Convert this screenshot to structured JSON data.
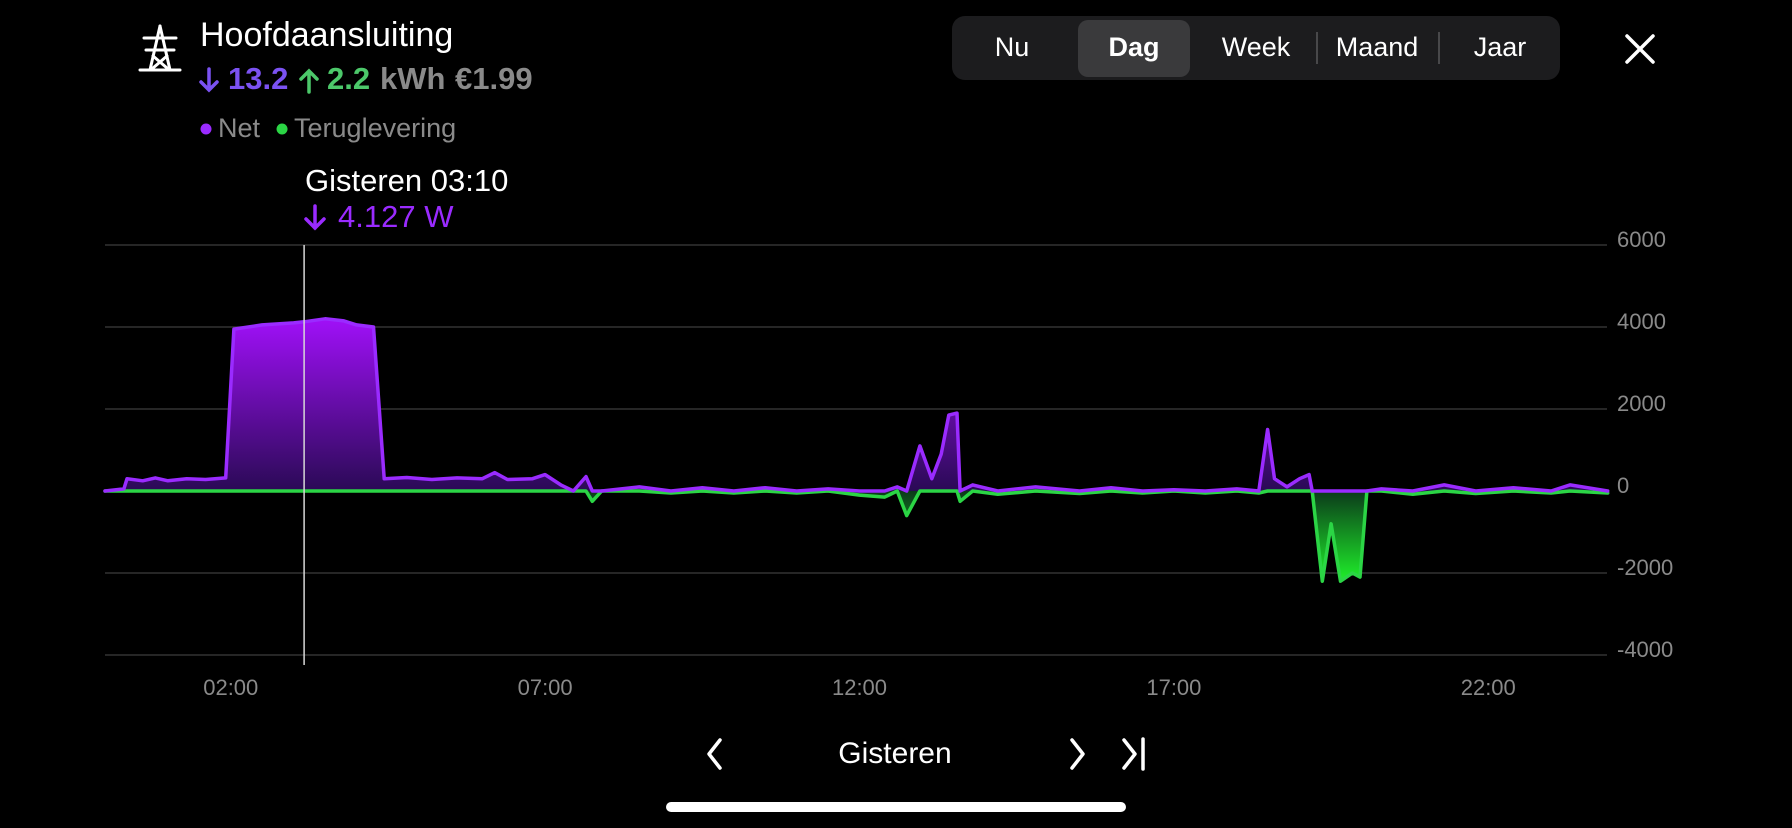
{
  "header": {
    "title": "Hoofdaansluiting",
    "import": 13.2,
    "export": 2.2,
    "unit": "kWh",
    "cost": "€1.99"
  },
  "tabs": [
    "Nu",
    "Dag",
    "Week",
    "Maand",
    "Jaar"
  ],
  "active_tab": 1,
  "nav": {
    "label": "Gisteren"
  },
  "chart_data": {
    "type": "area",
    "tooltip": {
      "title": "Gisteren 03:10",
      "value": "4.127 W"
    },
    "x": [
      0,
      0.3,
      0.35,
      0.6,
      0.8,
      1.0,
      1.3,
      1.6,
      1.92,
      2.05,
      2.5,
      3.0,
      3.1667,
      3.5,
      3.8,
      4.0,
      4.27,
      4.44,
      4.8,
      5.2,
      5.6,
      6.0,
      6.2,
      6.4,
      6.8,
      7.0,
      7.25,
      7.45,
      7.65,
      7.75,
      7.9,
      8.5,
      9.0,
      9.5,
      10.0,
      10.5,
      11.0,
      11.5,
      12.0,
      12.4,
      12.6,
      12.75,
      12.96,
      13.15,
      13.3,
      13.42,
      13.55,
      13.6,
      13.8,
      14.2,
      14.8,
      15.5,
      16.0,
      16.5,
      17.0,
      17.5,
      18.0,
      18.35,
      18.49,
      18.6,
      18.8,
      19.0,
      19.15,
      19.2,
      19.36,
      19.5,
      19.65,
      19.84,
      19.96,
      20.07,
      20.3,
      20.8,
      21.3,
      21.8,
      22.4,
      23.0,
      23.3,
      23.9
    ],
    "series": [
      {
        "name": "Net",
        "color": "#9a2bff",
        "values": [
          0,
          50,
          300,
          250,
          320,
          250,
          300,
          280,
          320,
          3950,
          4050,
          4100,
          4127,
          4200,
          4150,
          4050,
          4000,
          300,
          330,
          280,
          320,
          300,
          450,
          280,
          300,
          400,
          150,
          0,
          350,
          0,
          0,
          100,
          0,
          80,
          0,
          80,
          0,
          50,
          0,
          0,
          100,
          0,
          1100,
          300,
          900,
          1850,
          1900,
          0,
          150,
          0,
          100,
          0,
          80,
          0,
          30,
          0,
          50,
          0,
          1500,
          300,
          100,
          300,
          400,
          0,
          0,
          0,
          0,
          0,
          0,
          0,
          50,
          0,
          150,
          0,
          80,
          0,
          150,
          0
        ]
      },
      {
        "name": "Teruglevering",
        "color": "#2bd545",
        "values": [
          0,
          0,
          0,
          0,
          0,
          0,
          0,
          0,
          0,
          0,
          0,
          0,
          0,
          0,
          0,
          0,
          0,
          0,
          0,
          0,
          0,
          0,
          0,
          0,
          0,
          0,
          0,
          0,
          0,
          -250,
          0,
          0,
          -50,
          0,
          -50,
          0,
          -50,
          0,
          -100,
          -150,
          0,
          -600,
          0,
          0,
          0,
          0,
          0,
          -250,
          0,
          -80,
          0,
          -60,
          0,
          -50,
          0,
          -50,
          0,
          -50,
          0,
          0,
          0,
          0,
          0,
          0,
          -2200,
          -800,
          -2200,
          -2000,
          -2100,
          0,
          0,
          -80,
          0,
          -60,
          0,
          -50,
          0,
          -50
        ]
      }
    ],
    "xlim": [
      0,
      24
    ],
    "xticks": [
      {
        "value": 2,
        "label": "02:00"
      },
      {
        "value": 7,
        "label": "07:00"
      },
      {
        "value": 12,
        "label": "12:00"
      },
      {
        "value": 17,
        "label": "17:00"
      },
      {
        "value": 22,
        "label": "22:00"
      }
    ],
    "ylim": [
      -4000,
      6000
    ],
    "yticks": [
      -4000,
      -2000,
      0,
      2000,
      4000,
      6000
    ],
    "grid": true
  }
}
